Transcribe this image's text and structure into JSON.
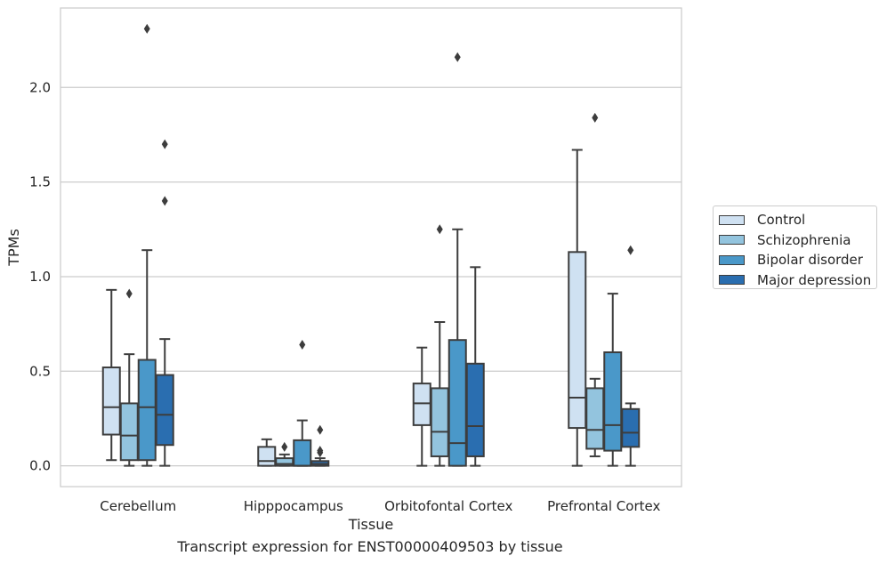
{
  "chart_data": {
    "type": "box",
    "title": "",
    "caption": "Transcript expression for ENST00000409503 by tissue",
    "xlabel": "Tissue",
    "ylabel": "TPMs",
    "ylim": [
      -0.11,
      2.42
    ],
    "yticks": [
      0.0,
      0.5,
      1.0,
      1.5,
      2.0
    ],
    "ytick_labels": [
      "0.0",
      "0.5",
      "1.0",
      "1.5",
      "2.0"
    ],
    "grid": "horizontal",
    "legend_position": "right",
    "categories": [
      "Cerebellum",
      "Hipppocampus",
      "Orbitofontal Cortex",
      "Prefrontal Cortex"
    ],
    "series": [
      {
        "name": "Control",
        "color": "#cfe1f2",
        "boxes": [
          {
            "whisker_low": 0.03,
            "q1": 0.165,
            "median": 0.31,
            "q3": 0.52,
            "whisker_high": 0.93,
            "outliers": []
          },
          {
            "whisker_low": 0.0,
            "q1": 0.0,
            "median": 0.025,
            "q3": 0.1,
            "whisker_high": 0.14,
            "outliers": []
          },
          {
            "whisker_low": 0.0,
            "q1": 0.215,
            "median": 0.33,
            "q3": 0.435,
            "whisker_high": 0.625,
            "outliers": []
          },
          {
            "whisker_low": 0.0,
            "q1": 0.2,
            "median": 0.36,
            "q3": 1.13,
            "whisker_high": 1.67,
            "outliers": []
          }
        ]
      },
      {
        "name": "Schizophrenia",
        "color": "#93c4de",
        "boxes": [
          {
            "whisker_low": 0.0,
            "q1": 0.03,
            "median": 0.16,
            "q3": 0.33,
            "whisker_high": 0.59,
            "outliers": [
              0.91
            ]
          },
          {
            "whisker_low": 0.0,
            "q1": 0.0,
            "median": 0.01,
            "q3": 0.04,
            "whisker_high": 0.06,
            "outliers": [
              0.1
            ]
          },
          {
            "whisker_low": 0.0,
            "q1": 0.05,
            "median": 0.18,
            "q3": 0.41,
            "whisker_high": 0.76,
            "outliers": [
              1.25
            ]
          },
          {
            "whisker_low": 0.05,
            "q1": 0.09,
            "median": 0.19,
            "q3": 0.41,
            "whisker_high": 0.46,
            "outliers": [
              1.84
            ]
          }
        ]
      },
      {
        "name": "Bipolar disorder",
        "color": "#4a98c9",
        "boxes": [
          {
            "whisker_low": 0.0,
            "q1": 0.03,
            "median": 0.31,
            "q3": 0.56,
            "whisker_high": 1.14,
            "outliers": [
              2.31
            ]
          },
          {
            "whisker_low": 0.0,
            "q1": 0.0,
            "median": 0.0,
            "q3": 0.135,
            "whisker_high": 0.24,
            "outliers": [
              0.64
            ]
          },
          {
            "whisker_low": 0.0,
            "q1": 0.0,
            "median": 0.12,
            "q3": 0.665,
            "whisker_high": 1.25,
            "outliers": [
              2.16
            ]
          },
          {
            "whisker_low": 0.0,
            "q1": 0.08,
            "median": 0.215,
            "q3": 0.6,
            "whisker_high": 0.91,
            "outliers": []
          }
        ]
      },
      {
        "name": "Major depression",
        "color": "#2a6eb0",
        "boxes": [
          {
            "whisker_low": 0.0,
            "q1": 0.11,
            "median": 0.27,
            "q3": 0.48,
            "whisker_high": 0.67,
            "outliers": [
              1.7,
              1.4
            ]
          },
          {
            "whisker_low": 0.0,
            "q1": 0.0,
            "median": 0.01,
            "q3": 0.025,
            "whisker_high": 0.04,
            "outliers": [
              0.07,
              0.19,
              0.08
            ]
          },
          {
            "whisker_low": 0.0,
            "q1": 0.05,
            "median": 0.21,
            "q3": 0.54,
            "whisker_high": 1.05,
            "outliers": []
          },
          {
            "whisker_low": 0.0,
            "q1": 0.1,
            "median": 0.175,
            "q3": 0.3,
            "whisker_high": 0.33,
            "outliers": [
              1.14
            ]
          }
        ]
      }
    ]
  }
}
